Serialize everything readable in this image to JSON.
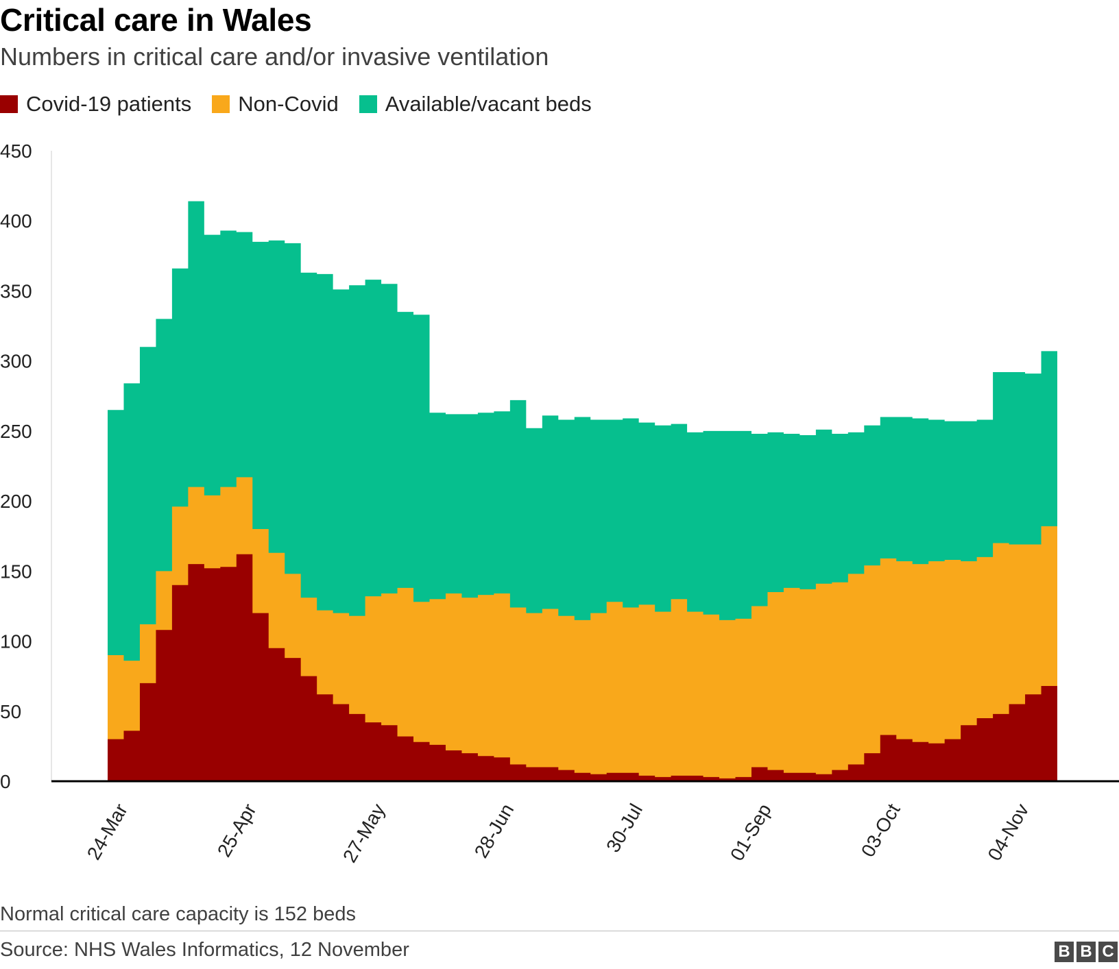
{
  "header": {
    "title": "Critical care in Wales",
    "subtitle": "Numbers in critical care and/or invasive ventilation"
  },
  "footer": {
    "note": "Normal critical care capacity is 152 beds",
    "source": "Source: NHS Wales Informatics, 12 November",
    "logo_letters": [
      "B",
      "B",
      "C"
    ]
  },
  "chart_data": {
    "type": "area",
    "stacked": true,
    "step": true,
    "x": [
      "24-Mar",
      "28-Mar",
      "01-Apr",
      "05-Apr",
      "09-Apr",
      "13-Apr",
      "17-Apr",
      "21-Apr",
      "25-Apr",
      "29-Apr",
      "03-May",
      "07-May",
      "11-May",
      "15-May",
      "19-May",
      "23-May",
      "27-May",
      "31-May",
      "04-Jun",
      "08-Jun",
      "12-Jun",
      "16-Jun",
      "20-Jun",
      "24-Jun",
      "28-Jun",
      "02-Jul",
      "06-Jul",
      "10-Jul",
      "14-Jul",
      "18-Jul",
      "22-Jul",
      "26-Jul",
      "30-Jul",
      "03-Aug",
      "07-Aug",
      "11-Aug",
      "15-Aug",
      "19-Aug",
      "23-Aug",
      "27-Aug",
      "01-Sep",
      "05-Sep",
      "09-Sep",
      "13-Sep",
      "17-Sep",
      "21-Sep",
      "25-Sep",
      "29-Sep",
      "03-Oct",
      "07-Oct",
      "11-Oct",
      "15-Oct",
      "19-Oct",
      "23-Oct",
      "27-Oct",
      "31-Oct",
      "04-Nov",
      "08-Nov",
      "11-Nov"
    ],
    "x_ticks": [
      "24-Mar",
      "25-Apr",
      "27-May",
      "28-Jun",
      "30-Jul",
      "01-Sep",
      "03-Oct",
      "04-Nov"
    ],
    "series": [
      {
        "name": "Covid-19 patients",
        "color": "#990000",
        "values": [
          30,
          36,
          70,
          108,
          140,
          155,
          152,
          153,
          162,
          120,
          95,
          88,
          75,
          62,
          55,
          48,
          42,
          40,
          32,
          28,
          26,
          22,
          20,
          18,
          17,
          12,
          10,
          10,
          8,
          6,
          5,
          6,
          6,
          4,
          3,
          4,
          4,
          3,
          2,
          3,
          10,
          8,
          6,
          6,
          5,
          8,
          12,
          20,
          33,
          30,
          28,
          27,
          30,
          40,
          45,
          48,
          55,
          62,
          68
        ]
      },
      {
        "name": "Non-Covid",
        "color": "#f9a81b",
        "values": [
          60,
          50,
          42,
          42,
          56,
          55,
          52,
          57,
          55,
          60,
          68,
          60,
          56,
          60,
          65,
          70,
          90,
          94,
          106,
          100,
          104,
          112,
          111,
          115,
          117,
          112,
          110,
          113,
          110,
          109,
          115,
          122,
          118,
          122,
          118,
          126,
          117,
          116,
          113,
          113,
          115,
          127,
          132,
          131,
          136,
          134,
          136,
          134,
          126,
          127,
          127,
          130,
          128,
          117,
          115,
          122,
          114,
          107,
          114
        ]
      },
      {
        "name": "Available/vacant beds",
        "color": "#06bf8e",
        "values": [
          175,
          198,
          198,
          180,
          170,
          204,
          186,
          183,
          175,
          205,
          223,
          236,
          232,
          240,
          231,
          236,
          226,
          221,
          197,
          205,
          133,
          128,
          131,
          130,
          130,
          148,
          132,
          138,
          140,
          145,
          138,
          130,
          135,
          130,
          133,
          125,
          128,
          131,
          135,
          134,
          123,
          114,
          110,
          110,
          110,
          106,
          101,
          100,
          101,
          103,
          104,
          101,
          99,
          100,
          98,
          122,
          123,
          122,
          125
        ]
      }
    ],
    "xlabel": "",
    "ylabel": "",
    "ylim": [
      0,
      450
    ],
    "y_ticks": [
      0,
      50,
      100,
      150,
      200,
      250,
      300,
      350,
      400,
      450
    ],
    "grid": false,
    "legend": "top-left"
  }
}
